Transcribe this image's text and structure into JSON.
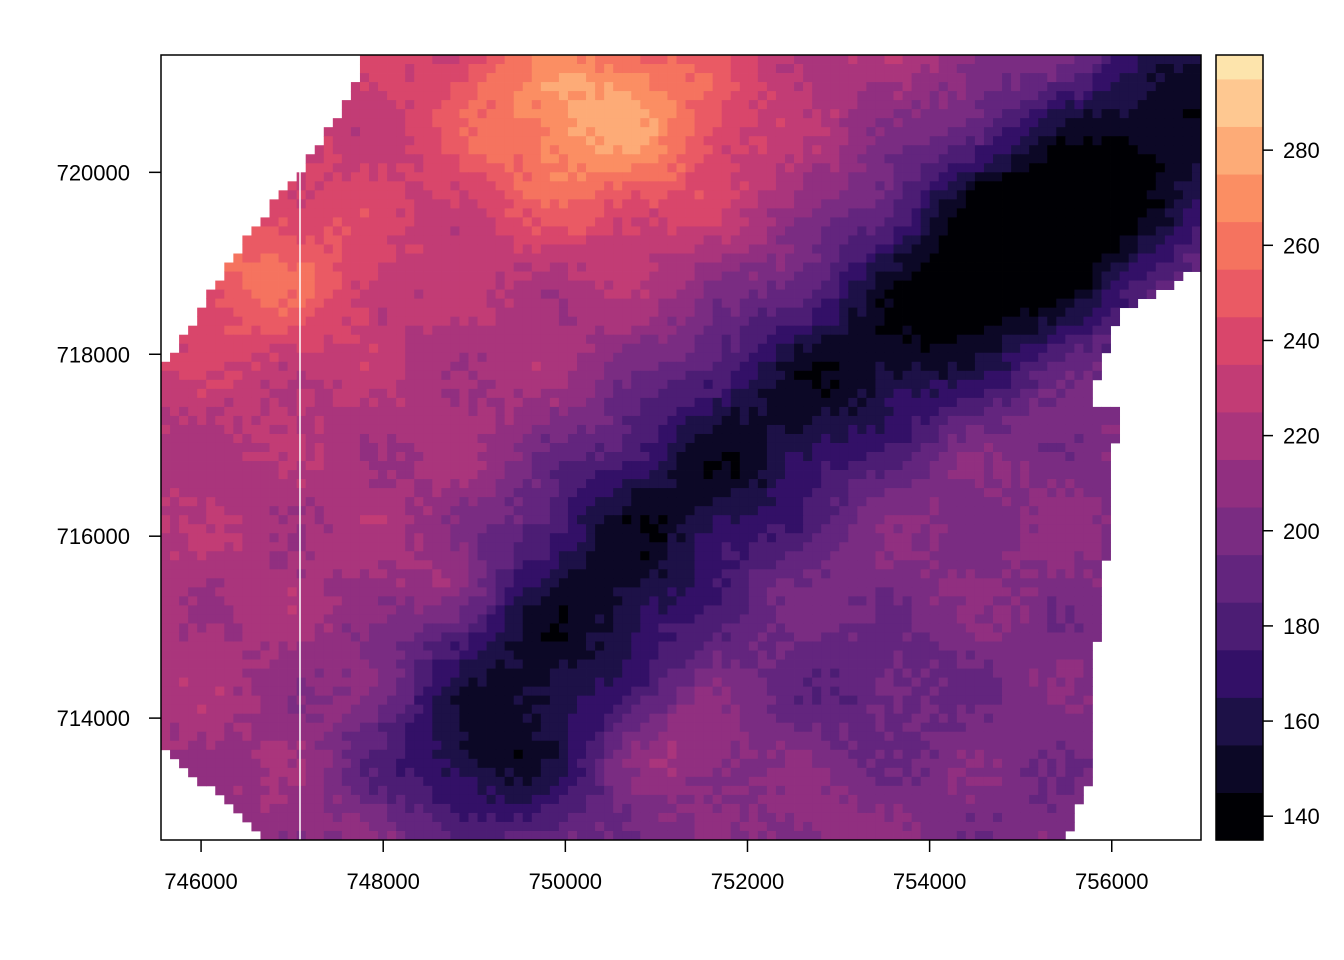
{
  "chart_data": {
    "type": "heatmap",
    "title": "",
    "xlabel": "",
    "ylabel": "",
    "xlim": [
      745560,
      756980
    ],
    "ylim": [
      712660,
      721290
    ],
    "x_ticks": [
      746000,
      748000,
      750000,
      752000,
      754000,
      756000
    ],
    "x_tick_labels": [
      "746000",
      "748000",
      "750000",
      "752000",
      "754000",
      "756000"
    ],
    "y_ticks": [
      714000,
      716000,
      718000,
      720000
    ],
    "y_tick_labels": [
      "714000",
      "716000",
      "718000",
      "720000"
    ],
    "legend": {
      "placement": "right",
      "breaks": [
        135,
        145,
        155,
        165,
        175,
        185,
        195,
        205,
        215,
        225,
        235,
        245,
        255,
        265,
        275,
        285,
        295,
        300
      ],
      "colors": [
        "#000004",
        "#0c0826",
        "#1d1147",
        "#331067",
        "#4c1d74",
        "#63257e",
        "#7a2c82",
        "#912f80",
        "#aa357c",
        "#c23c75",
        "#d9466b",
        "#ea5a64",
        "#f5735f",
        "#fb8e63",
        "#fdab77",
        "#fec891",
        "#fde4ac",
        "#fcfdbf"
      ],
      "tick_values": [
        140,
        160,
        180,
        200,
        220,
        240,
        260,
        280
      ],
      "tick_labels": [
        "140",
        "160",
        "180",
        "200",
        "220",
        "240",
        "260",
        "280"
      ]
    },
    "grid": false,
    "value_summary": {
      "min": 140,
      "max": 285,
      "northeast_valley": 150,
      "west_and_north_ridges": 270,
      "south_lowlands": 215
    }
  }
}
